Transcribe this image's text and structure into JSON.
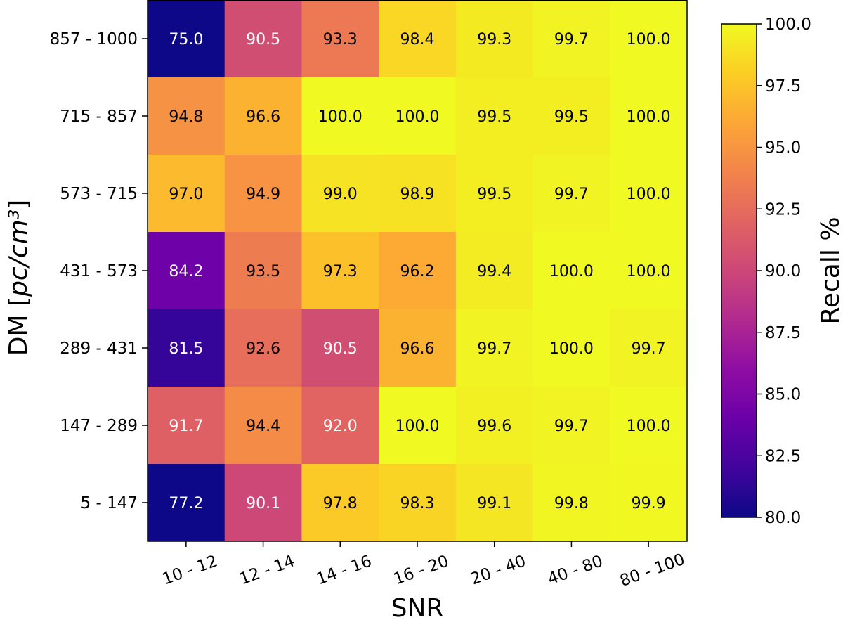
{
  "chart_data": {
    "type": "heatmap",
    "xlabel": "SNR",
    "ylabel": "DM [pc/cm³]",
    "x_categories": [
      "10 - 12",
      "12 - 14",
      "14 - 16",
      "16 - 20",
      "20 - 40",
      "40 - 80",
      "80 - 100"
    ],
    "y_categories": [
      "857 - 1000",
      "715 - 857",
      "573 - 715",
      "431 - 573",
      "289 - 431",
      "147 - 289",
      "5 - 147"
    ],
    "values": [
      [
        75.0,
        90.5,
        93.3,
        98.4,
        99.3,
        99.7,
        100.0
      ],
      [
        94.8,
        96.6,
        100.0,
        100.0,
        99.5,
        99.5,
        100.0
      ],
      [
        97.0,
        94.9,
        99.0,
        98.9,
        99.5,
        99.7,
        100.0
      ],
      [
        84.2,
        93.5,
        97.3,
        96.2,
        99.4,
        100.0,
        100.0
      ],
      [
        81.5,
        92.6,
        90.5,
        96.6,
        99.7,
        100.0,
        99.7
      ],
      [
        91.7,
        94.4,
        92.0,
        100.0,
        99.6,
        99.7,
        100.0
      ],
      [
        77.2,
        90.1,
        97.8,
        98.3,
        99.1,
        99.8,
        99.9
      ]
    ],
    "colorbar": {
      "label": "Recall %",
      "range": [
        80.0,
        100.0
      ],
      "ticks": [
        "80.0",
        "82.5",
        "85.0",
        "87.5",
        "90.0",
        "92.5",
        "95.0",
        "97.5",
        "100.0"
      ],
      "colormap": "plasma"
    },
    "x_tick_rotation": "rotated",
    "grid": false
  }
}
